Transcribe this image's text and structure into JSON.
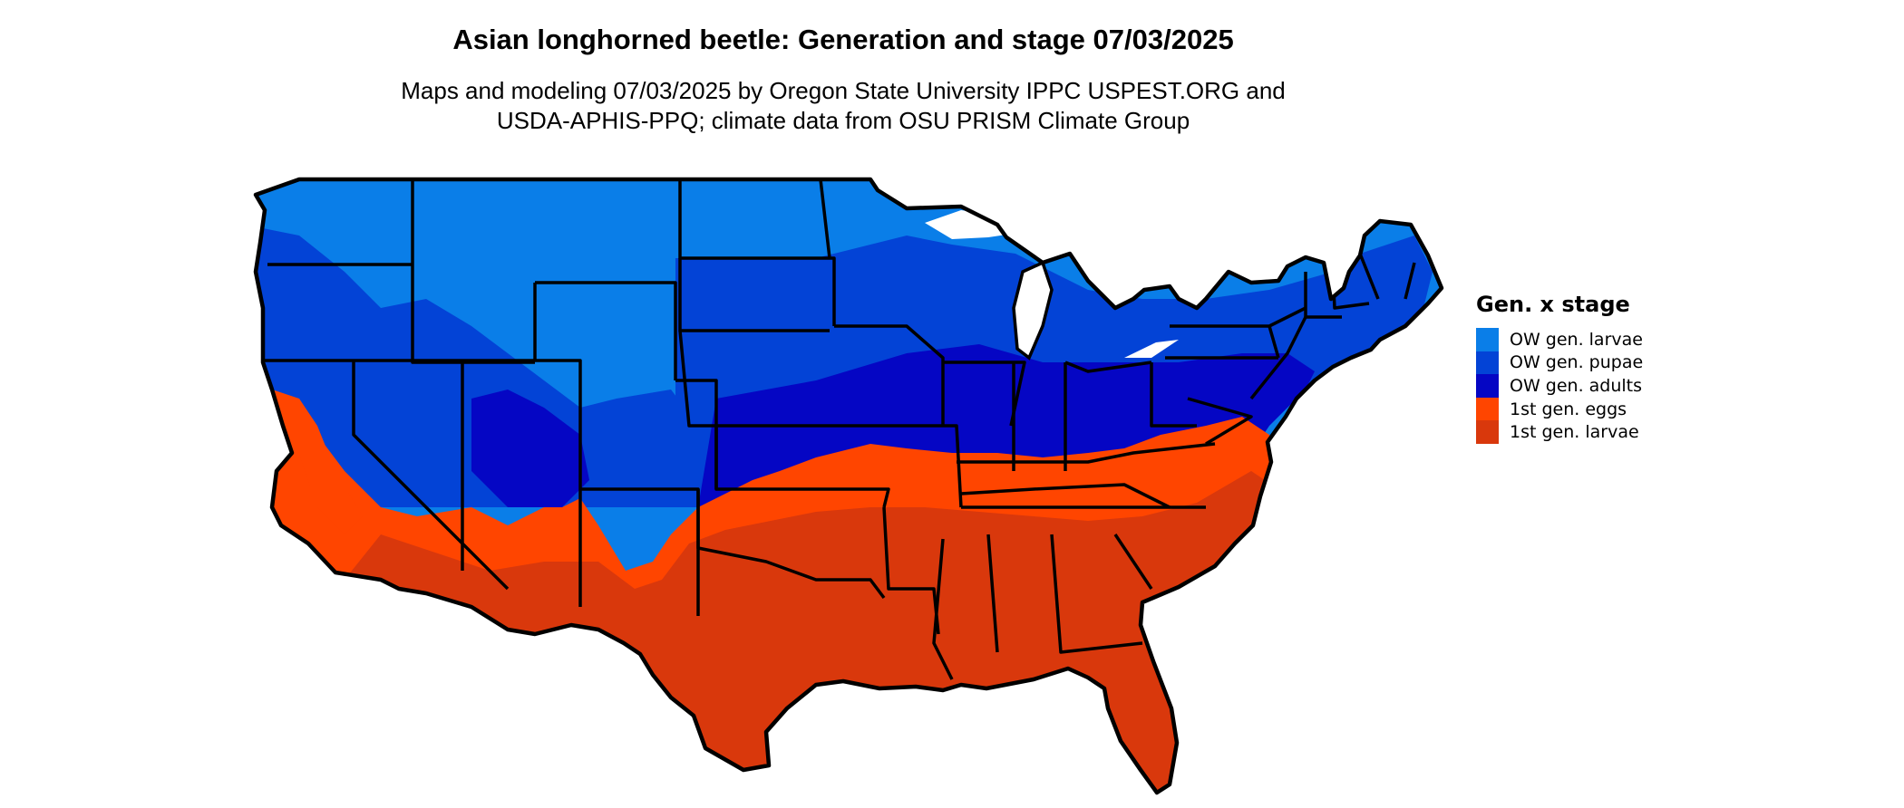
{
  "title": "Asian longhorned beetle: Generation and stage 07/03/2025",
  "subtitle_lines": [
    "Maps and modeling 07/03/2025 by Oregon State University IPPC USPEST.ORG and",
    "USDA-APHIS-PPQ; climate data from OSU PRISM Climate Group"
  ],
  "legend": {
    "title": "Gen. x stage",
    "items": [
      {
        "label": "OW gen. larvae",
        "color": "#0a7ee8"
      },
      {
        "label": "OW gen. pupae",
        "color": "#0343d6"
      },
      {
        "label": "OW gen. adults",
        "color": "#0506c4"
      },
      {
        "label": "1st gen. eggs",
        "color": "#ff4500"
      },
      {
        "label": "1st gen. larvae",
        "color": "#d9380c"
      }
    ]
  },
  "colors": {
    "border": "#000000",
    "background": "#ffffff"
  }
}
